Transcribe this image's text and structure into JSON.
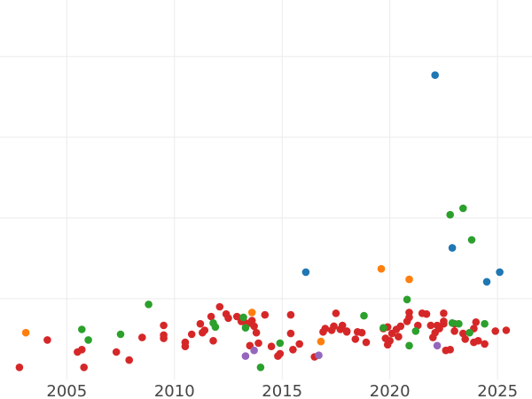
{
  "chart_data": {
    "type": "scatter",
    "title": "",
    "xlabel": "",
    "ylabel": "",
    "xlim": [
      2001.9,
      2026.6
    ],
    "ylim": [
      0,
      470
    ],
    "x_ticks": [
      2005,
      2010,
      2015,
      2020,
      2025
    ],
    "x_tick_labels": [
      "2005",
      "2010",
      "2015",
      "2020",
      "2025"
    ],
    "y_gridlines": [
      100,
      200,
      300,
      400
    ],
    "vertical_gridlines": true,
    "legend": "none",
    "series_colors": [
      "#d62728",
      "#2ca02c",
      "#1f77b4",
      "#ff7f0e",
      "#9467bd"
    ],
    "series": [
      {
        "color": "#d62728",
        "points": [
          [
            2002.8,
            15
          ],
          [
            2004.1,
            49
          ],
          [
            2005.5,
            34
          ],
          [
            2005.7,
            37
          ],
          [
            2005.8,
            15
          ],
          [
            2007.3,
            34
          ],
          [
            2007.9,
            24
          ],
          [
            2008.5,
            52
          ],
          [
            2009.5,
            51
          ],
          [
            2009.5,
            55
          ],
          [
            2009.5,
            67
          ],
          [
            2010.5,
            46
          ],
          [
            2010.5,
            41
          ],
          [
            2010.8,
            56
          ],
          [
            2011.2,
            69
          ],
          [
            2011.3,
            58
          ],
          [
            2011.4,
            61
          ],
          [
            2011.7,
            78
          ],
          [
            2011.8,
            48
          ],
          [
            2012.1,
            90
          ],
          [
            2012.4,
            81
          ],
          [
            2012.5,
            76
          ],
          [
            2012.9,
            78
          ],
          [
            2013.1,
            72
          ],
          [
            2013.3,
            70
          ],
          [
            2013.5,
            42
          ],
          [
            2013.5,
            70
          ],
          [
            2013.6,
            73
          ],
          [
            2013.7,
            66
          ],
          [
            2013.8,
            58
          ],
          [
            2013.9,
            45
          ],
          [
            2014.2,
            80
          ],
          [
            2014.5,
            41
          ],
          [
            2014.8,
            29
          ],
          [
            2014.9,
            32
          ],
          [
            2015.4,
            57
          ],
          [
            2015.4,
            80
          ],
          [
            2015.5,
            37
          ],
          [
            2015.8,
            44
          ],
          [
            2016.5,
            28
          ],
          [
            2016.9,
            59
          ],
          [
            2017.0,
            63
          ],
          [
            2017.3,
            61
          ],
          [
            2017.4,
            66
          ],
          [
            2017.5,
            82
          ],
          [
            2017.7,
            62
          ],
          [
            2017.8,
            67
          ],
          [
            2018.0,
            60
          ],
          [
            2018.0,
            59
          ],
          [
            2018.4,
            50
          ],
          [
            2018.5,
            59
          ],
          [
            2018.7,
            58
          ],
          [
            2018.9,
            46
          ],
          [
            2019.7,
            63
          ],
          [
            2019.8,
            51
          ],
          [
            2019.9,
            65
          ],
          [
            2019.9,
            43
          ],
          [
            2020.0,
            48
          ],
          [
            2020.1,
            57
          ],
          [
            2020.3,
            62
          ],
          [
            2020.4,
            53
          ],
          [
            2020.5,
            66
          ],
          [
            2020.8,
            72
          ],
          [
            2020.9,
            77
          ],
          [
            2020.9,
            83
          ],
          [
            2021.3,
            67
          ],
          [
            2021.5,
            82
          ],
          [
            2021.7,
            81
          ],
          [
            2021.9,
            67
          ],
          [
            2022.0,
            52
          ],
          [
            2022.1,
            58
          ],
          [
            2022.2,
            67
          ],
          [
            2022.3,
            63
          ],
          [
            2022.5,
            69
          ],
          [
            2022.5,
            72
          ],
          [
            2022.5,
            82
          ],
          [
            2022.6,
            36
          ],
          [
            2022.8,
            37
          ],
          [
            2023.0,
            60
          ],
          [
            2023.0,
            69
          ],
          [
            2023.4,
            57
          ],
          [
            2023.5,
            50
          ],
          [
            2023.9,
            46
          ],
          [
            2023.9,
            63
          ],
          [
            2024.0,
            71
          ],
          [
            2024.1,
            48
          ],
          [
            2024.4,
            44
          ],
          [
            2024.9,
            60
          ],
          [
            2025.4,
            61
          ]
        ]
      },
      {
        "color": "#2ca02c",
        "points": [
          [
            2005.7,
            62
          ],
          [
            2006.0,
            49
          ],
          [
            2007.5,
            56
          ],
          [
            2008.8,
            93
          ],
          [
            2011.8,
            70
          ],
          [
            2011.9,
            65
          ],
          [
            2013.2,
            77
          ],
          [
            2013.3,
            64
          ],
          [
            2014.0,
            15
          ],
          [
            2014.9,
            45
          ],
          [
            2018.8,
            79
          ],
          [
            2019.7,
            64
          ],
          [
            2020.8,
            99
          ],
          [
            2020.9,
            42
          ],
          [
            2021.2,
            60
          ],
          [
            2022.8,
            204
          ],
          [
            2022.9,
            70
          ],
          [
            2023.2,
            69
          ],
          [
            2023.4,
            212
          ],
          [
            2023.7,
            58
          ],
          [
            2023.8,
            173
          ],
          [
            2024.4,
            69
          ]
        ]
      },
      {
        "color": "#1f77b4",
        "points": [
          [
            2016.1,
            133
          ],
          [
            2022.1,
            377
          ],
          [
            2022.9,
            163
          ],
          [
            2024.5,
            121
          ],
          [
            2025.1,
            133
          ]
        ]
      },
      {
        "color": "#ff7f0e",
        "points": [
          [
            2003.1,
            58
          ],
          [
            2013.6,
            83
          ],
          [
            2016.8,
            47
          ],
          [
            2019.6,
            137
          ],
          [
            2020.9,
            124
          ]
        ]
      },
      {
        "color": "#9467bd",
        "points": [
          [
            2013.3,
            29
          ],
          [
            2013.7,
            36
          ],
          [
            2016.7,
            30
          ],
          [
            2022.2,
            42
          ]
        ]
      }
    ]
  }
}
